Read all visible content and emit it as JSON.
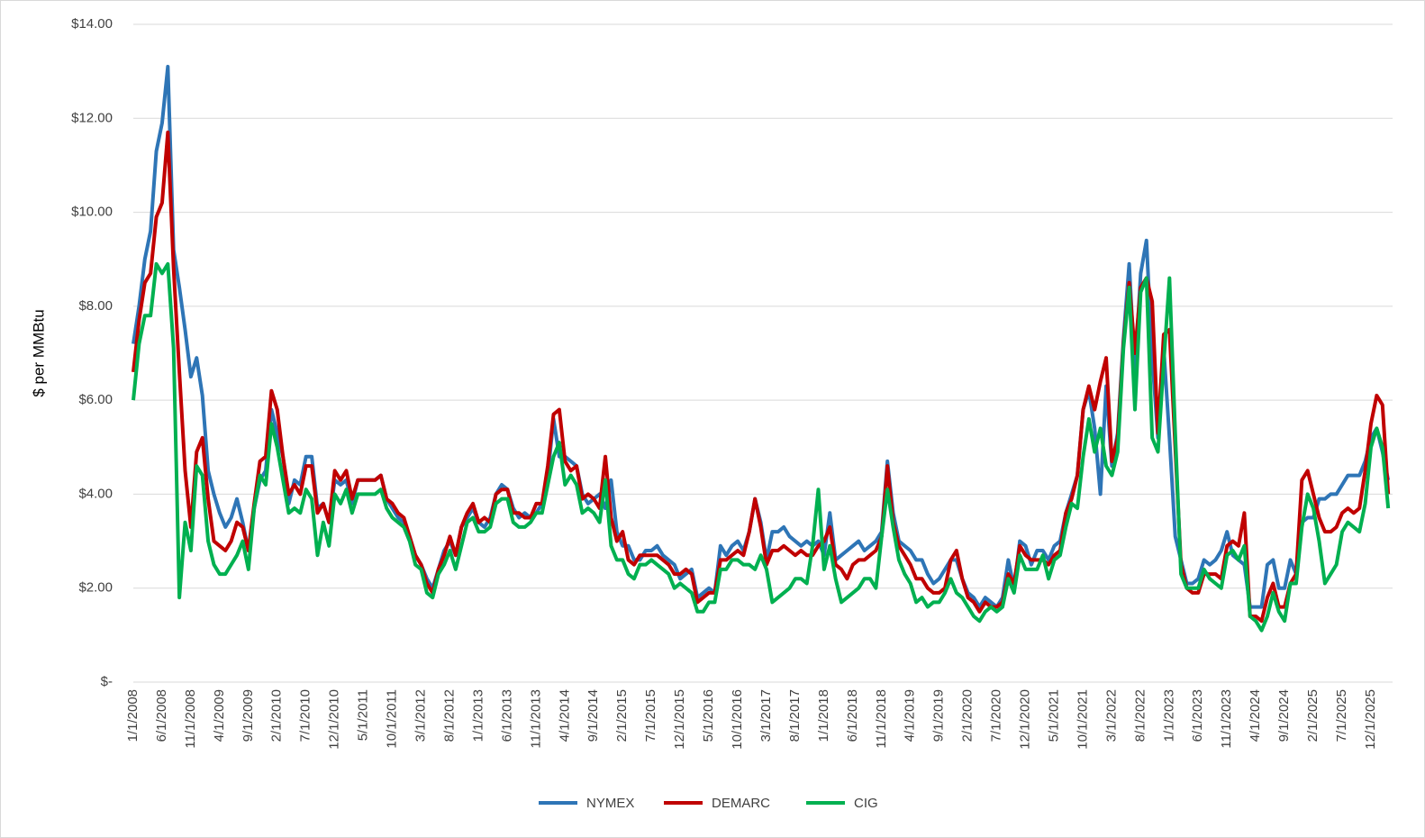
{
  "chart_data": {
    "type": "line",
    "y_label": "$ per MMBtu",
    "categories": [
      "1/1/2008",
      null,
      null,
      null,
      null,
      "6/1/2008",
      null,
      null,
      null,
      null,
      "11/1/2008",
      null,
      null,
      null,
      null,
      "4/1/2009",
      null,
      null,
      null,
      null,
      "9/1/2009",
      null,
      null,
      null,
      null,
      "2/1/2010",
      null,
      null,
      null,
      null,
      "7/1/2010",
      null,
      null,
      null,
      null,
      "12/1/2010",
      null,
      null,
      null,
      null,
      "5/1/2011",
      null,
      null,
      null,
      null,
      "10/1/2011",
      null,
      null,
      null,
      null,
      "3/1/2012",
      null,
      null,
      null,
      null,
      "8/1/2012",
      null,
      null,
      null,
      null,
      "1/1/2013",
      null,
      null,
      null,
      null,
      "6/1/2013",
      null,
      null,
      null,
      null,
      "11/1/2013",
      null,
      null,
      null,
      null,
      "4/1/2014",
      null,
      null,
      null,
      null,
      "9/1/2014",
      null,
      null,
      null,
      null,
      "2/1/2015",
      null,
      null,
      null,
      null,
      "7/1/2015",
      null,
      null,
      null,
      null,
      "12/1/2015",
      null,
      null,
      null,
      null,
      "5/1/2016",
      null,
      null,
      null,
      null,
      "10/1/2016",
      null,
      null,
      null,
      null,
      "3/1/2017",
      null,
      null,
      null,
      null,
      "8/1/2017",
      null,
      null,
      null,
      null,
      "1/1/2018",
      null,
      null,
      null,
      null,
      "6/1/2018",
      null,
      null,
      null,
      null,
      "11/1/2018",
      null,
      null,
      null,
      null,
      "4/1/2019",
      null,
      null,
      null,
      null,
      "9/1/2019",
      null,
      null,
      null,
      null,
      "2/1/2020",
      null,
      null,
      null,
      null,
      "7/1/2020",
      null,
      null,
      null,
      null,
      "12/1/2020",
      null,
      null,
      null,
      null,
      "5/1/2021",
      null,
      null,
      null,
      null,
      "10/1/2021",
      null,
      null,
      null,
      null,
      "3/1/2022",
      null,
      null,
      null,
      null,
      "8/1/2022",
      null,
      null,
      null,
      null,
      "1/1/2023",
      null,
      null,
      null,
      null,
      "6/1/2023",
      null,
      null,
      null,
      null,
      "11/1/2023",
      null,
      null,
      null,
      null,
      "4/1/2024",
      null,
      null,
      null,
      null,
      "9/1/2024",
      null,
      null,
      null,
      null,
      "2/1/2025",
      null,
      null,
      null,
      null,
      "7/1/2025",
      null,
      null,
      null,
      null,
      "12/1/2025",
      null,
      null,
      null
    ],
    "series": [
      {
        "name": "NYMEX",
        "color": "#2e75b6",
        "values": [
          7.2,
          8.0,
          9.0,
          9.6,
          11.3,
          11.9,
          13.1,
          9.2,
          8.4,
          7.5,
          6.5,
          6.9,
          6.1,
          4.5,
          4.0,
          3.6,
          3.3,
          3.5,
          3.9,
          3.4,
          2.8,
          3.7,
          4.3,
          4.5,
          5.8,
          5.3,
          4.8,
          3.8,
          4.3,
          4.2,
          4.8,
          4.8,
          3.7,
          3.8,
          3.4,
          4.3,
          4.2,
          4.3,
          3.8,
          4.3,
          4.3,
          4.3,
          4.3,
          4.4,
          3.9,
          3.7,
          3.5,
          3.4,
          3.1,
          2.7,
          2.5,
          2.2,
          2.0,
          2.4,
          2.8,
          3.0,
          2.7,
          3.3,
          3.5,
          3.7,
          3.4,
          3.3,
          3.5,
          4.0,
          4.2,
          4.1,
          3.7,
          3.5,
          3.6,
          3.5,
          3.6,
          3.8,
          4.4,
          5.6,
          4.8,
          4.8,
          4.7,
          4.6,
          4.0,
          3.8,
          3.9,
          4.0,
          3.7,
          4.3,
          3.2,
          2.9,
          2.9,
          2.6,
          2.6,
          2.8,
          2.8,
          2.9,
          2.7,
          2.6,
          2.5,
          2.2,
          2.3,
          2.4,
          1.8,
          1.9,
          2.0,
          1.9,
          2.9,
          2.7,
          2.9,
          3.0,
          2.8,
          3.2,
          3.9,
          3.4,
          2.6,
          3.2,
          3.2,
          3.3,
          3.1,
          3.0,
          2.9,
          3.0,
          2.9,
          3.0,
          2.7,
          3.6,
          2.6,
          2.7,
          2.8,
          2.9,
          3.0,
          2.8,
          2.9,
          3.0,
          3.2,
          4.7,
          3.6,
          3.0,
          2.9,
          2.8,
          2.6,
          2.6,
          2.3,
          2.1,
          2.2,
          2.4,
          2.6,
          2.6,
          2.2,
          1.9,
          1.8,
          1.6,
          1.8,
          1.7,
          1.6,
          1.8,
          2.6,
          2.0,
          3.0,
          2.9,
          2.5,
          2.8,
          2.8,
          2.6,
          2.9,
          3.0,
          3.6,
          4.0,
          4.4,
          5.8,
          6.2,
          5.4,
          4.0,
          6.3,
          4.6,
          5.3,
          7.3,
          8.9,
          6.6,
          8.7,
          9.4,
          6.9,
          5.2,
          7.1,
          5.2,
          3.1,
          2.6,
          2.1,
          2.1,
          2.2,
          2.6,
          2.5,
          2.6,
          2.8,
          3.2,
          2.7,
          2.6,
          2.5,
          1.6,
          1.6,
          1.6,
          2.5,
          2.6,
          2.0,
          2.0,
          2.6,
          2.3,
          3.4,
          3.5,
          3.5,
          3.9,
          3.9,
          4.0,
          4.0,
          4.2,
          4.4,
          4.4,
          4.4,
          4.7,
          5.2,
          5.4,
          4.9,
          4.3
        ]
      },
      {
        "name": "DEMARC",
        "color": "#c00000",
        "values": [
          6.6,
          7.7,
          8.5,
          8.7,
          9.9,
          10.2,
          11.7,
          8.8,
          6.6,
          4.5,
          3.3,
          4.9,
          5.2,
          3.9,
          3.0,
          2.9,
          2.8,
          3.0,
          3.4,
          3.3,
          2.8,
          3.8,
          4.7,
          4.8,
          6.2,
          5.8,
          4.8,
          4.0,
          4.2,
          4.0,
          4.6,
          4.6,
          3.6,
          3.8,
          3.4,
          4.5,
          4.3,
          4.5,
          3.9,
          4.3,
          4.3,
          4.3,
          4.3,
          4.4,
          3.9,
          3.8,
          3.6,
          3.5,
          3.1,
          2.7,
          2.5,
          2.1,
          1.9,
          2.4,
          2.7,
          3.1,
          2.7,
          3.3,
          3.6,
          3.8,
          3.4,
          3.5,
          3.4,
          4.0,
          4.1,
          4.1,
          3.6,
          3.6,
          3.5,
          3.5,
          3.8,
          3.8,
          4.6,
          5.7,
          5.8,
          4.7,
          4.5,
          4.6,
          3.9,
          4.0,
          3.9,
          3.7,
          4.8,
          3.5,
          3.0,
          3.2,
          2.6,
          2.5,
          2.7,
          2.7,
          2.7,
          2.7,
          2.6,
          2.5,
          2.3,
          2.3,
          2.4,
          2.3,
          1.7,
          1.8,
          1.9,
          1.9,
          2.6,
          2.6,
          2.7,
          2.8,
          2.7,
          3.2,
          3.9,
          3.3,
          2.5,
          2.8,
          2.8,
          2.9,
          2.8,
          2.7,
          2.8,
          2.7,
          2.7,
          2.9,
          3.0,
          3.3,
          2.5,
          2.4,
          2.2,
          2.5,
          2.6,
          2.6,
          2.7,
          2.8,
          3.1,
          4.6,
          3.4,
          2.9,
          2.7,
          2.5,
          2.2,
          2.2,
          2.0,
          1.9,
          1.9,
          2.0,
          2.6,
          2.8,
          2.2,
          1.8,
          1.7,
          1.5,
          1.7,
          1.6,
          1.6,
          1.7,
          2.3,
          2.1,
          2.9,
          2.7,
          2.6,
          2.6,
          2.6,
          2.5,
          2.7,
          2.8,
          3.6,
          3.9,
          4.4,
          5.8,
          6.3,
          5.8,
          6.4,
          6.9,
          4.7,
          5.2,
          7.2,
          8.5,
          7.0,
          8.4,
          8.6,
          8.1,
          5.3,
          7.4,
          7.5,
          5.0,
          2.5,
          2.0,
          1.9,
          1.9,
          2.3,
          2.3,
          2.3,
          2.2,
          2.9,
          3.0,
          2.9,
          3.6,
          1.4,
          1.4,
          1.3,
          1.8,
          2.1,
          1.6,
          1.6,
          2.1,
          2.3,
          4.3,
          4.5,
          4.0,
          3.5,
          3.2,
          3.2,
          3.3,
          3.6,
          3.7,
          3.6,
          3.7,
          4.5,
          5.5,
          6.1,
          5.9,
          4.0
        ]
      },
      {
        "name": "CIG",
        "color": "#00b050",
        "values": [
          6.0,
          7.2,
          7.8,
          7.8,
          8.9,
          8.7,
          8.9,
          7.1,
          1.8,
          3.4,
          2.8,
          4.6,
          4.4,
          3.0,
          2.5,
          2.3,
          2.3,
          2.5,
          2.7,
          3.0,
          2.4,
          3.7,
          4.4,
          4.2,
          5.5,
          5.0,
          4.3,
          3.6,
          3.7,
          3.6,
          4.1,
          3.9,
          2.7,
          3.4,
          2.9,
          4.0,
          3.8,
          4.1,
          3.6,
          4.0,
          4.0,
          4.0,
          4.0,
          4.1,
          3.7,
          3.5,
          3.4,
          3.3,
          3.0,
          2.5,
          2.4,
          1.9,
          1.8,
          2.3,
          2.5,
          2.8,
          2.4,
          2.9,
          3.4,
          3.5,
          3.2,
          3.2,
          3.3,
          3.8,
          3.9,
          3.9,
          3.4,
          3.3,
          3.3,
          3.4,
          3.6,
          3.6,
          4.2,
          4.8,
          5.1,
          4.2,
          4.4,
          4.2,
          3.6,
          3.7,
          3.6,
          3.4,
          4.3,
          2.9,
          2.6,
          2.6,
          2.3,
          2.2,
          2.5,
          2.5,
          2.6,
          2.5,
          2.4,
          2.3,
          2.0,
          2.1,
          2.0,
          1.9,
          1.5,
          1.5,
          1.7,
          1.7,
          2.4,
          2.4,
          2.6,
          2.6,
          2.5,
          2.5,
          2.4,
          2.7,
          2.4,
          1.7,
          1.8,
          1.9,
          2.0,
          2.2,
          2.2,
          2.1,
          2.9,
          4.1,
          2.4,
          2.9,
          2.2,
          1.7,
          1.8,
          1.9,
          2.0,
          2.2,
          2.2,
          2.0,
          3.1,
          4.1,
          3.3,
          2.6,
          2.3,
          2.1,
          1.7,
          1.8,
          1.6,
          1.7,
          1.7,
          1.9,
          2.2,
          1.9,
          1.8,
          1.6,
          1.4,
          1.3,
          1.5,
          1.6,
          1.5,
          1.6,
          2.2,
          1.9,
          2.7,
          2.4,
          2.4,
          2.4,
          2.7,
          2.2,
          2.6,
          2.7,
          3.3,
          3.8,
          3.7,
          4.8,
          5.6,
          4.9,
          5.4,
          4.6,
          4.4,
          4.9,
          7.1,
          8.4,
          5.8,
          8.3,
          8.6,
          5.2,
          4.9,
          6.8,
          8.6,
          5.3,
          2.3,
          2.0,
          2.0,
          2.0,
          2.4,
          2.2,
          2.1,
          2.0,
          2.7,
          2.8,
          2.6,
          2.9,
          1.4,
          1.3,
          1.1,
          1.4,
          1.9,
          1.5,
          1.3,
          2.1,
          2.1,
          3.3,
          4.0,
          3.7,
          3.0,
          2.1,
          2.3,
          2.5,
          3.2,
          3.4,
          3.3,
          3.2,
          3.8,
          5.0,
          5.4,
          5.0,
          3.7
        ]
      }
    ],
    "ylim": [
      0,
      14
    ],
    "yticks": [
      {
        "value": 0,
        "label": "$-"
      },
      {
        "value": 2,
        "label": "$2.00"
      },
      {
        "value": 4,
        "label": "$4.00"
      },
      {
        "value": 6,
        "label": "$6.00"
      },
      {
        "value": 8,
        "label": "$8.00"
      },
      {
        "value": 10,
        "label": "$10.00"
      },
      {
        "value": 12,
        "label": "$12.00"
      },
      {
        "value": 14,
        "label": "$14.00"
      }
    ],
    "grid": true,
    "legend": "bottom"
  }
}
